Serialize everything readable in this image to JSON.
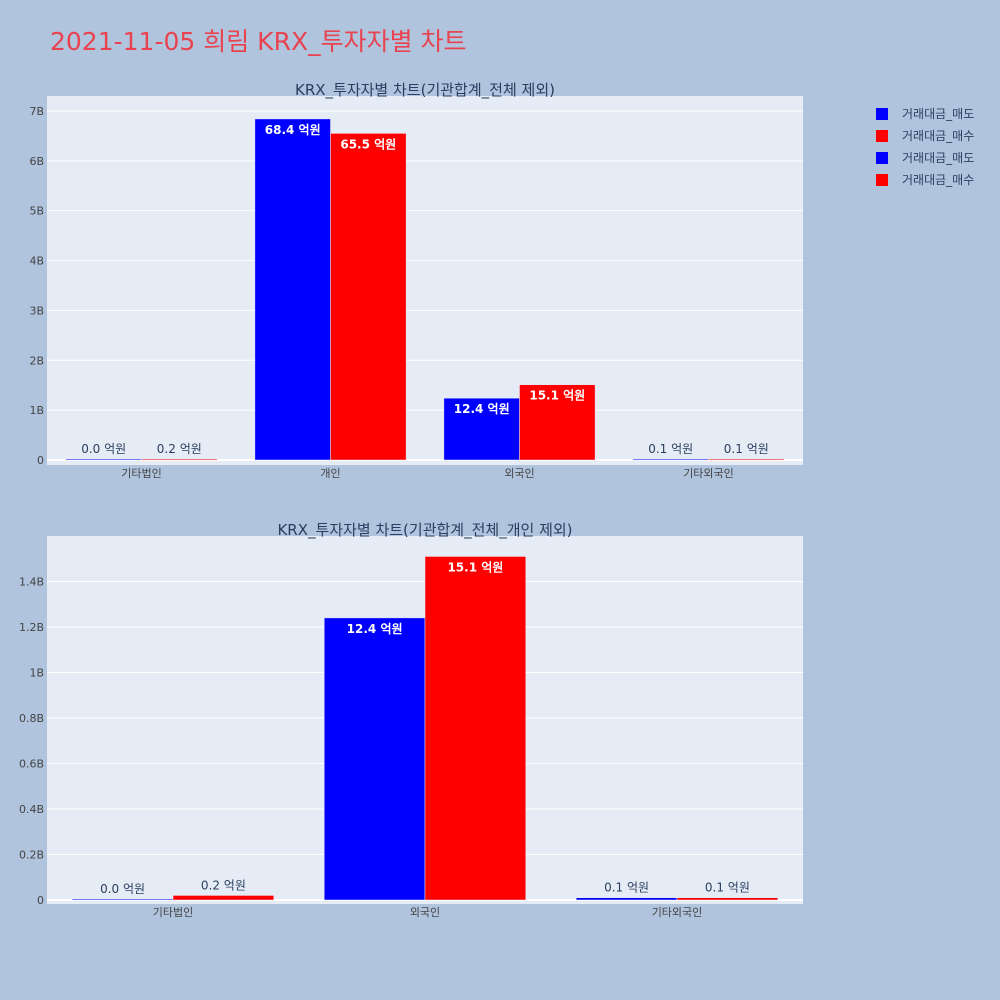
{
  "page_title": "2021-11-05 희림 KRX_투자자별 차트",
  "colors": {
    "sell": "#0000ff",
    "buy": "#ff0000",
    "plot_bg": "#e5ecf6",
    "page_bg": "#b0c4de",
    "title": "#e8434f"
  },
  "legend": {
    "entries": [
      {
        "label": "거래대금_매도",
        "color": "#0000ff"
      },
      {
        "label": "거래대금_매수",
        "color": "#ff0000"
      },
      {
        "label": "거래대금_매도",
        "color": "#0000ff"
      },
      {
        "label": "거래대금_매수",
        "color": "#ff0000"
      }
    ]
  },
  "chart_data": [
    {
      "type": "bar",
      "title": "KRX_투자자별 차트(기관합계_전체 제외)",
      "categories": [
        "기타법인",
        "개인",
        "외국인",
        "기타외국인"
      ],
      "series": [
        {
          "name": "거래대금_매도",
          "color": "#0000ff",
          "values": [
            0.004,
            6.84,
            1.24,
            0.01
          ],
          "labels": [
            "0.0 억원",
            "68.4 억원",
            "12.4 억원",
            "0.1 억원"
          ]
        },
        {
          "name": "거래대금_매수",
          "color": "#ff0000",
          "values": [
            0.02,
            6.55,
            1.51,
            0.01
          ],
          "labels": [
            "0.2 억원",
            "65.5 억원",
            "15.1 억원",
            "0.1 억원"
          ]
        }
      ],
      "ylim": [
        0,
        7.3
      ],
      "yticks": [
        0,
        1,
        2,
        3,
        4,
        5,
        6,
        7
      ],
      "ytick_labels": [
        "0",
        "1B",
        "2B",
        "3B",
        "4B",
        "5B",
        "6B",
        "7B"
      ]
    },
    {
      "type": "bar",
      "title": "KRX_투자자별 차트(기관합계_전체_개인 제외)",
      "categories": [
        "기타법인",
        "외국인",
        "기타외국인"
      ],
      "series": [
        {
          "name": "거래대금_매도",
          "color": "#0000ff",
          "values": [
            0.004,
            1.24,
            0.01
          ],
          "labels": [
            "0.0 억원",
            "12.4 억원",
            "0.1 억원"
          ]
        },
        {
          "name": "거래대금_매수",
          "color": "#ff0000",
          "values": [
            0.02,
            1.51,
            0.01
          ],
          "labels": [
            "0.2 억원",
            "15.1 억원",
            "0.1 억원"
          ]
        }
      ],
      "ylim": [
        0,
        1.6
      ],
      "yticks": [
        0,
        0.2,
        0.4,
        0.6,
        0.8,
        1,
        1.2,
        1.4
      ],
      "ytick_labels": [
        "0",
        "0.2B",
        "0.4B",
        "0.6B",
        "0.8B",
        "1B",
        "1.2B",
        "1.4B"
      ]
    }
  ]
}
